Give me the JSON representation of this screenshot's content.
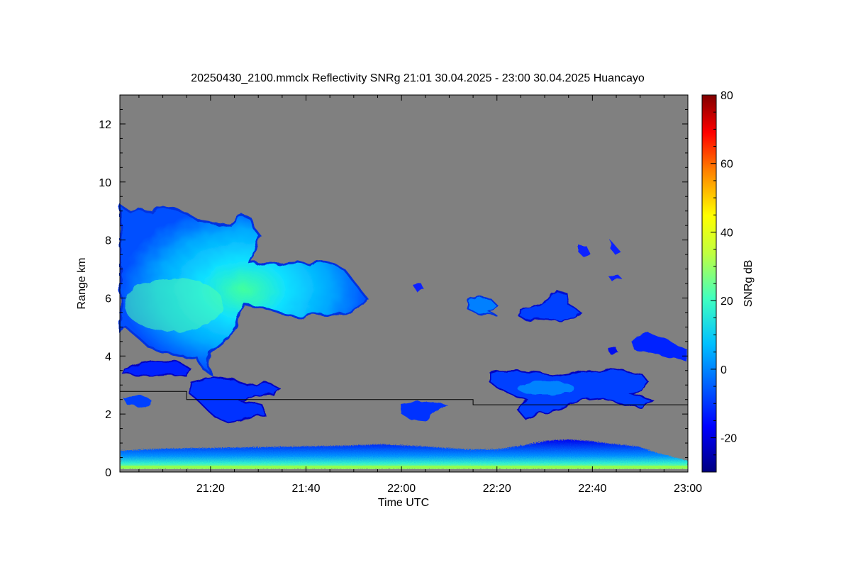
{
  "chart_data": {
    "type": "heatmap",
    "title": "20250430_2100.mmclx Reflectivity SNRg   21:01 30.04.2025 - 23:00 30.04.2025 Huancayo",
    "xlabel": "Time UTC",
    "ylabel": "Range km",
    "xlim": [
      "21:01",
      "23:00"
    ],
    "ylim": [
      0,
      13
    ],
    "x_ticks": [
      "21:20",
      "21:40",
      "22:00",
      "22:20",
      "22:40",
      "23:00"
    ],
    "y_ticks": [
      0,
      2,
      4,
      6,
      8,
      10,
      12
    ],
    "colorbar": {
      "label": "SNRg dB",
      "range": [
        -30,
        80
      ],
      "ticks": [
        -20,
        0,
        20,
        40,
        60,
        80
      ],
      "colormap": "jet",
      "background_color": "#808080"
    },
    "reference_line": {
      "color": "#000000",
      "points": [
        [
          "21:01",
          2.78
        ],
        [
          "21:15",
          2.78
        ],
        [
          "21:15",
          2.5
        ],
        [
          "22:15",
          2.5
        ],
        [
          "22:15",
          2.32
        ],
        [
          "23:00",
          2.32
        ]
      ]
    },
    "echo_regions": [
      {
        "name": "upper cloud",
        "x": [
          "21:01",
          "21:53"
        ],
        "y": [
          4.0,
          9.2
        ],
        "peak_snr_db": 12
      },
      {
        "name": "cloud patch",
        "x": [
          "22:15",
          "22:22"
        ],
        "y": [
          5.6,
          6.0
        ],
        "peak_snr_db": -5
      },
      {
        "name": "cloud patch",
        "x": [
          "22:25",
          "22:37"
        ],
        "y": [
          5.2,
          6.3
        ],
        "peak_snr_db": -8
      },
      {
        "name": "cloud patch",
        "x": [
          "22:38",
          "22:41"
        ],
        "y": [
          7.2,
          7.6
        ],
        "peak_snr_db": -15
      },
      {
        "name": "cloud patch",
        "x": [
          "22:43",
          "22:46"
        ],
        "y": [
          7.2,
          7.7
        ],
        "peak_snr_db": -15
      },
      {
        "name": "mid-level echoes",
        "x": [
          "21:01",
          "21:35"
        ],
        "y": [
          1.7,
          3.8
        ],
        "peak_snr_db": -12
      },
      {
        "name": "mid-level echoes",
        "x": [
          "22:00",
          "22:11"
        ],
        "y": [
          1.8,
          2.5
        ],
        "peak_snr_db": -12
      },
      {
        "name": "mid-level echoes",
        "x": [
          "22:16",
          "23:00"
        ],
        "y": [
          1.8,
          4.6
        ],
        "peak_snr_db": -5
      },
      {
        "name": "boundary layer",
        "x": [
          "21:01",
          "23:00"
        ],
        "y": [
          0.0,
          0.9
        ],
        "peak_snr_db": 10
      }
    ]
  }
}
